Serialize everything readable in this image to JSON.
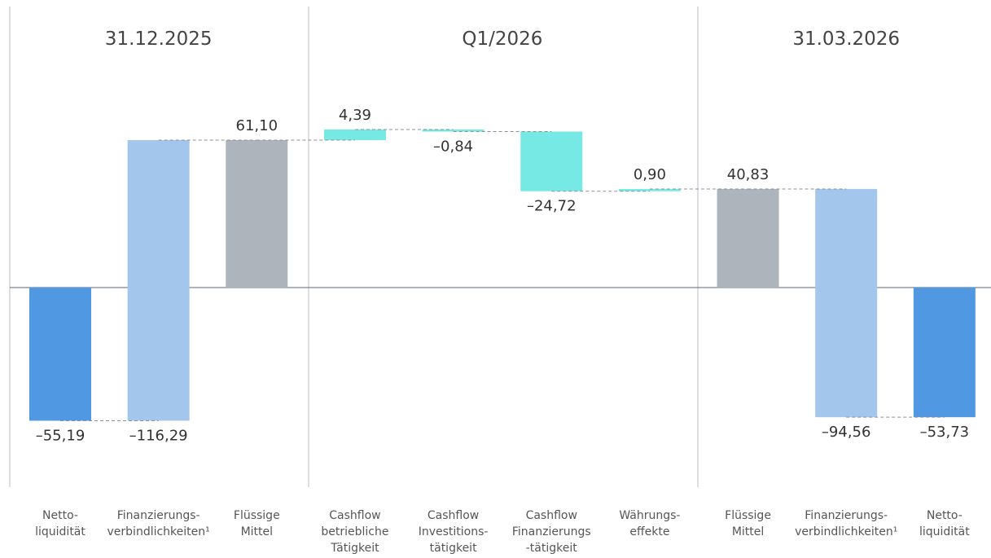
{
  "chart_data": {
    "type": "waterfall",
    "groups": [
      {
        "label": "31.12.2025",
        "span": [
          0,
          2
        ]
      },
      {
        "label": "Q1/2026",
        "span": [
          3,
          6
        ]
      },
      {
        "label": "31.03.2026",
        "span": [
          7,
          9
        ]
      }
    ],
    "categories": [
      [
        "Netto-",
        "liquidität"
      ],
      [
        "Finanzierungs-",
        "verbindlichkeiten¹"
      ],
      [
        "Flüssige",
        "Mittel"
      ],
      [
        "Cashflow",
        "betriebliche",
        "Tätigkeit"
      ],
      [
        "Cashflow",
        "Investitions-",
        "tätigkeit"
      ],
      [
        "Cashflow",
        "Finanzierungs",
        "-tätigkeit"
      ],
      [
        "Währungs-",
        "effekte"
      ],
      [
        "Flüssige",
        "Mittel"
      ],
      [
        "Finanzierungs-",
        "verbindlichkeiten¹"
      ],
      [
        "Netto-",
        "liquidität"
      ]
    ],
    "values": [
      -55.19,
      -116.29,
      61.1,
      4.39,
      -0.84,
      -24.72,
      0.9,
      40.83,
      -94.56,
      -53.73
    ],
    "value_labels": [
      "–55,19",
      "–116,29",
      "61,10",
      "4,39",
      "–0,84",
      "–24,72",
      "0,90",
      "40,83",
      "–94,56",
      "–53,73"
    ],
    "measure": [
      "absolute",
      "reverse",
      "absolute",
      "relative",
      "relative",
      "relative",
      "relative",
      "absolute",
      "relative",
      "absolute"
    ],
    "colors": [
      "#5198e2",
      "#a3c6ec",
      "#aeb4bb",
      "#76e9e5",
      "#76e9e5",
      "#76e9e5",
      "#76e9e5",
      "#aeb4bb",
      "#a3c6ec",
      "#5198e2"
    ]
  }
}
